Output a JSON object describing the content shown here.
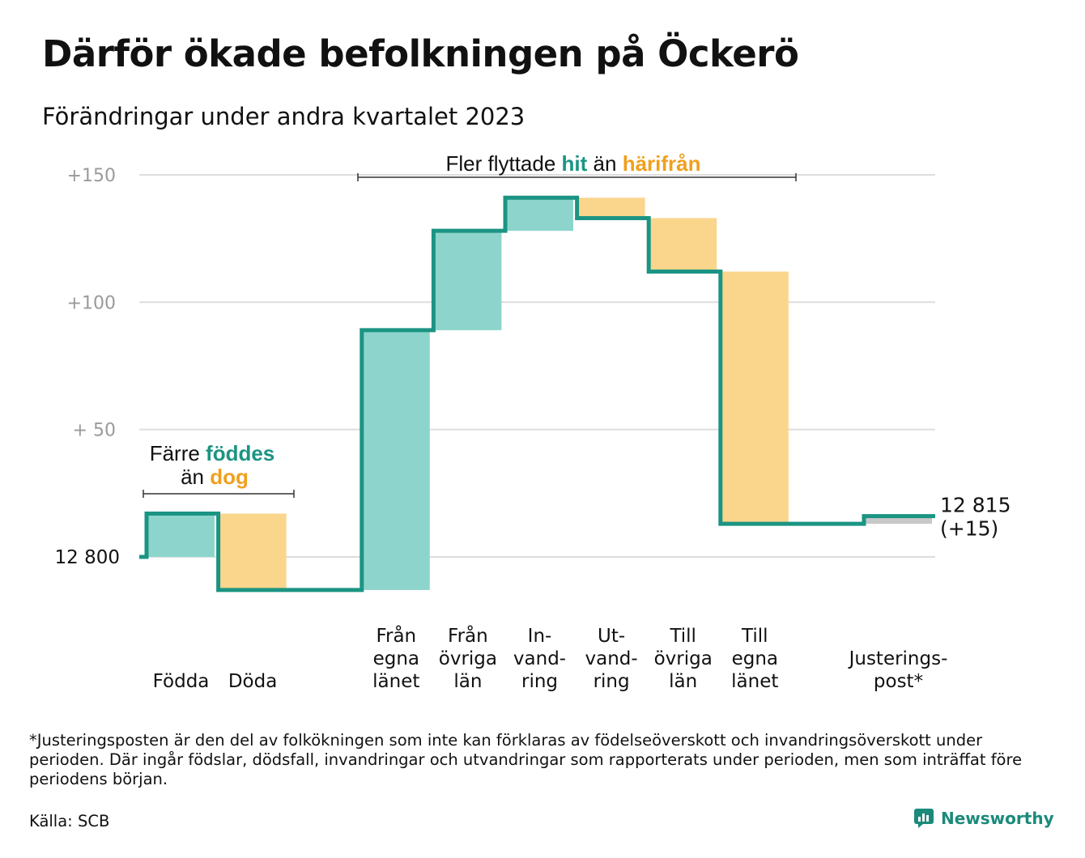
{
  "title": "Därför ökade befolkningen på Öckerö",
  "subtitle": "Förändringar under andra kvartalet 2023",
  "footnote": "*Justeringsposten är den del av folkökningen som inte kan förklaras av födelseöverskott och invandringsöverskott under perioden. Där ingår födslar, dödsfall, invandringar och utvandringar som rapporterats under perioden, men som inträffat före periodens början.",
  "source": "Källa: SCB",
  "brand": "Newsworthy",
  "colors": {
    "increase": "#8dd5cc",
    "decrease": "#fad58c",
    "adjustment": "#c8c8c8",
    "line": "#1b9483",
    "accent_teal": "#1b9483",
    "accent_orange": "#f0a01e",
    "grid": "#dddddd",
    "tick": "#9a9a9a"
  },
  "annotations": {
    "births_deaths": {
      "line1_prefix": "Färre ",
      "line1_highlight": "föddes",
      "line2_prefix": "än ",
      "line2_highlight": "dog"
    },
    "migration": {
      "prefix": "Fler flyttade ",
      "highlight1": "hit",
      "middle": " än ",
      "highlight2": "härifrån"
    }
  },
  "chart_data": {
    "type": "waterfall",
    "base_label": "12  800",
    "start_value": 12800,
    "end_label": [
      "12 815",
      "(+15)"
    ],
    "y_ticks": [
      {
        "value": 150,
        "label": "+150"
      },
      {
        "value": 100,
        "label": "+100"
      },
      {
        "value": 50,
        "label": "+  50"
      },
      {
        "value": 0,
        "label": ""
      }
    ],
    "ylim": [
      -20,
      160
    ],
    "steps": [
      {
        "label": [
          "",
          "",
          "Födda"
        ],
        "change": 17,
        "kind": "increase"
      },
      {
        "label": [
          "",
          "",
          "Döda"
        ],
        "change": -30,
        "kind": "decrease"
      },
      {
        "label": [
          "",
          "",
          ""
        ],
        "change": 0,
        "kind": "gap"
      },
      {
        "label": [
          "Från",
          "egna",
          "länet"
        ],
        "change": 102,
        "kind": "increase"
      },
      {
        "label": [
          "Från",
          "övriga",
          "län"
        ],
        "change": 39,
        "kind": "increase"
      },
      {
        "label": [
          "In-",
          "vand-",
          "ring"
        ],
        "change": 13,
        "kind": "increase"
      },
      {
        "label": [
          "Ut-",
          "vand-",
          "ring"
        ],
        "change": -8,
        "kind": "decrease"
      },
      {
        "label": [
          "Till",
          "övriga",
          "län"
        ],
        "change": -21,
        "kind": "decrease"
      },
      {
        "label": [
          "Till",
          "egna",
          "länet"
        ],
        "change": -99,
        "kind": "decrease"
      },
      {
        "label": [
          "",
          "",
          ""
        ],
        "change": 0,
        "kind": "gap"
      },
      {
        "label": [
          "",
          "Justerings-",
          "post*"
        ],
        "change": 3,
        "kind": "adjustment"
      }
    ],
    "end_value": 12815,
    "net_change": 15
  }
}
